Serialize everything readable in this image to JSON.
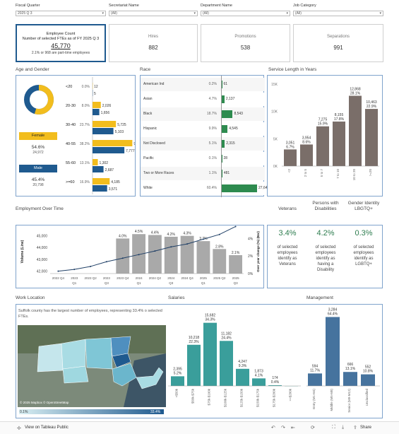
{
  "filters": [
    {
      "label": "Fiscal Quarter",
      "value": "2025 Q 3"
    },
    {
      "label": "Secretariat Name",
      "value": "(All)"
    },
    {
      "label": "Department Name",
      "value": "(All)"
    },
    {
      "label": "Job Category",
      "value": "(All)"
    }
  ],
  "kpis": {
    "main": {
      "title": "Employee Count",
      "subtitle": "Number of selected FTEs as of FY 2025 Q 3",
      "value": "45,770",
      "note": "2.1% or 968 are part-time employees"
    },
    "cards": [
      {
        "title": "Hires",
        "value": "882"
      },
      {
        "title": "Promotions",
        "value": "538"
      },
      {
        "title": "Separations",
        "value": "991"
      }
    ]
  },
  "sections": {
    "age_gender": "Age and Gender",
    "race": "Race",
    "service": "Service Length in Years",
    "employment": "Employment Over Time",
    "work_location": "Work Location",
    "salaries": "Salaries",
    "management": "Management"
  },
  "gender": {
    "female": {
      "label": "Female",
      "pct": "54.6%",
      "count": "24,972"
    },
    "male": {
      "label": "Male",
      "pct": "45.4%",
      "count": "20,798"
    },
    "donut_female_fraction": 0.546
  },
  "colors": {
    "female": "#f2bd1d",
    "male": "#1f5a8f",
    "green": "#2e8b4f",
    "brown": "#7a6e69",
    "teal": "#3a9e9b",
    "slate": "#46739e",
    "grey": "#a9a9a9"
  },
  "chart_data": [
    {
      "type": "bar",
      "title": "Age and Gender",
      "categories": [
        "<20",
        "20-30",
        "30-40",
        "40-55",
        "55-60",
        ">=60"
      ],
      "pct_labels": [
        "0.0%",
        "8.0%",
        "23.7%",
        "38.2%",
        "13.1%",
        "16.9%"
      ],
      "series": [
        {
          "name": "Female",
          "values": [
            12,
            2026,
            5725,
            9722,
            1302,
            4185
          ]
        },
        {
          "name": "Male",
          "values": [
            5,
            1656,
            5103,
            7777,
            2687,
            3571
          ]
        }
      ]
    },
    {
      "type": "bar",
      "title": "Race",
      "categories": [
        "American Ind",
        "Asian",
        "Black",
        "Hispanic",
        "Not Disclosed",
        "Pacific",
        "Two or More Races",
        "White"
      ],
      "pct_labels": [
        "0.2%",
        "4.7%",
        "18.7%",
        "9.9%",
        "5.1%",
        "0.1%",
        "1.1%",
        "60.4%"
      ],
      "values": [
        61,
        2137,
        8543,
        4545,
        2315,
        28,
        481,
        27640
      ]
    },
    {
      "type": "bar",
      "title": "Service Length in Years",
      "categories": [
        "<2",
        "2 to 5",
        "5 to 7",
        "7 to 10",
        "10 to 20",
        ">=20"
      ],
      "values": [
        3051,
        3954,
        7275,
        8155,
        12868,
        10463
      ],
      "pct_labels": [
        "6.7%",
        "8.6%",
        "15.9%",
        "17.8%",
        "28.1%",
        "22.9%"
      ],
      "ylim": [
        0,
        15000
      ],
      "yticks": [
        "0K",
        "5K",
        "10K",
        "15K"
      ]
    },
    {
      "type": "bar",
      "title": "Employment Over Time",
      "x": [
        "2022 Q4",
        "2023 Q1",
        "2023 Q2",
        "2023 Q3",
        "2023 Q4",
        "2024 Q1",
        "2024 Q2",
        "2024 Q3",
        "2024 Q4",
        "2025 Q1",
        "2025 Q2",
        "2025 Q3"
      ],
      "x_top": [
        "2022 Q4",
        "",
        "2023 Q2",
        "",
        "2023 Q4",
        "",
        "2024 Q2",
        "",
        "2024 Q4",
        "",
        "2025 Q2",
        ""
      ],
      "x_bottom": [
        "",
        "2023 Q1",
        "",
        "2023 Q3",
        "",
        "2024 Q1",
        "",
        "2024 Q3",
        "",
        "2025 Q1",
        "",
        "2025 Q3"
      ],
      "volume": [
        42000,
        42150,
        42400,
        42800,
        43100,
        43400,
        43700,
        44050,
        44300,
        44700,
        45100,
        45770
      ],
      "yoy_pct": [
        null,
        null,
        null,
        null,
        4.0,
        4.5,
        4.4,
        4.2,
        4.3,
        3.7,
        2.8,
        2.1
      ],
      "yoy_labels": [
        "",
        "",
        "",
        "",
        "4.0%",
        "4.5%",
        "4.4%",
        "4.2%",
        "4.3%",
        "3.7%",
        "2.8%",
        "2.1%"
      ],
      "ylabel": "Volume (Line)",
      "ylabel2": "Over year change (%) (Bar)",
      "yticks": [
        "42,000",
        "43,000",
        "44,000",
        "45,000"
      ],
      "yticks2": [
        "0%",
        "2%",
        "4%"
      ],
      "ylim": [
        41800,
        45500
      ],
      "ylim2": [
        0,
        5
      ]
    },
    {
      "type": "bar",
      "title": "Salaries",
      "categories": [
        "<$50k",
        "$50k-$75k",
        "$75k-$100k",
        "$100k-$125k",
        "$125k-$150k",
        "$150k-$175k",
        "$175k-$200k",
        ">=$200k"
      ],
      "values": [
        2395,
        10218,
        15682,
        11182,
        4247,
        1873,
        174,
        0
      ],
      "pct_labels": [
        "5.2%",
        "22.3%",
        "34.3%",
        "24.4%",
        "9.3%",
        "4.1%",
        "0.4%",
        ""
      ],
      "value_labels": [
        "2,395",
        "10,218",
        "15,682",
        "11,182",
        "4,247",
        "1,873",
        "174",
        ""
      ]
    },
    {
      "type": "bar",
      "title": "Management",
      "categories": [
        "Entry (M1-M4)",
        "Middle (M5-M8)",
        "Senior (M9-M12)",
        "Unclassified"
      ],
      "values": [
        594,
        3284,
        666,
        552
      ],
      "pct_labels": [
        "11.7%",
        "64.4%",
        "13.1%",
        "10.8%"
      ],
      "value_labels": [
        "594",
        "3,284",
        "666",
        "552"
      ]
    }
  ],
  "persons": [
    {
      "title": "Veterans",
      "value": "3.4%",
      "desc": [
        "of selected",
        "employees",
        "identify as",
        "Veterans"
      ]
    },
    {
      "title": "Persons with Disabilities",
      "value": "4.2%",
      "desc": [
        "of selected",
        "employees",
        "identify as",
        "having a",
        "Disability"
      ]
    },
    {
      "title": "Gender Identity LBGTQ+",
      "value": "0.3%",
      "desc": [
        "of selected",
        "employees",
        "identify as",
        "LGBTQ+"
      ]
    }
  ],
  "map": {
    "note": "Suffolk county has the largest number of employees, representing 33.4% o selected FTEs.",
    "attribution": "© 2025 Mapbox © OpenStreetMap",
    "legend_min": "0.1%",
    "legend_max": "33.4%"
  },
  "footer": {
    "view_link": "View on Tableau Public",
    "share": "Share"
  }
}
